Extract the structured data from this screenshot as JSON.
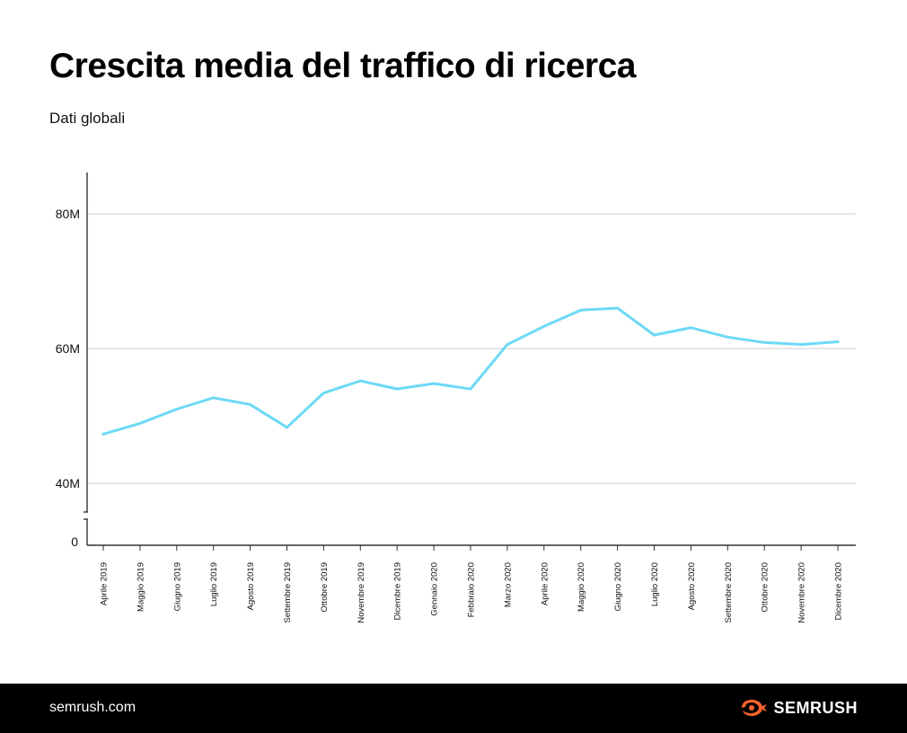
{
  "header": {
    "title": "Crescita media del traffico di ricerca",
    "subtitle": "Dati globali"
  },
  "footer": {
    "url": "semrush.com",
    "brand": "SEMRUSH",
    "logo_icon": "semrush-fire-logo-icon",
    "logo_color": "#FF642D"
  },
  "colors": {
    "line": "#6DD9F7",
    "grid": "#D9D9D9",
    "axis": "#333333",
    "text": "#111111"
  },
  "chart_data": {
    "type": "line",
    "title": "Crescita media del traffico di ricerca",
    "subtitle": "Dati globali",
    "xlabel": "",
    "ylabel": "",
    "categories": [
      "Aprile 2019",
      "Maggio 2019",
      "Giugno 2019",
      "Luglio 2019",
      "Agosto 2019",
      "Settembre 2019",
      "Ottobre 2019",
      "Novembre 2019",
      "Dicembre 2019",
      "Gennaio 2020",
      "Febbraio 2020",
      "Marzo 2020",
      "Aprile 2020",
      "Maggio 2020",
      "Giugno 2020",
      "Luglio 2020",
      "Agosto 2020",
      "Settembre 2020",
      "Ottobre 2020",
      "Novembre 2020",
      "Dicembre 2020"
    ],
    "series": [
      {
        "values": [
          47.3,
          48.9,
          51.0,
          52.7,
          51.7,
          48.3,
          53.4,
          55.2,
          54.0,
          54.8,
          54.0,
          60.6,
          63.3,
          65.7,
          66.0,
          62.0,
          63.1,
          61.7,
          60.9,
          60.6,
          61.0
        ]
      }
    ],
    "unit": "M",
    "ylim": [
      30,
      86
    ],
    "yticks": [
      {
        "value": 40,
        "label": "40M"
      },
      {
        "value": 60,
        "label": "60M"
      },
      {
        "value": 80,
        "label": "80M"
      }
    ],
    "zero_label": "0",
    "axis_break": true,
    "grid": true,
    "legend": "none"
  }
}
